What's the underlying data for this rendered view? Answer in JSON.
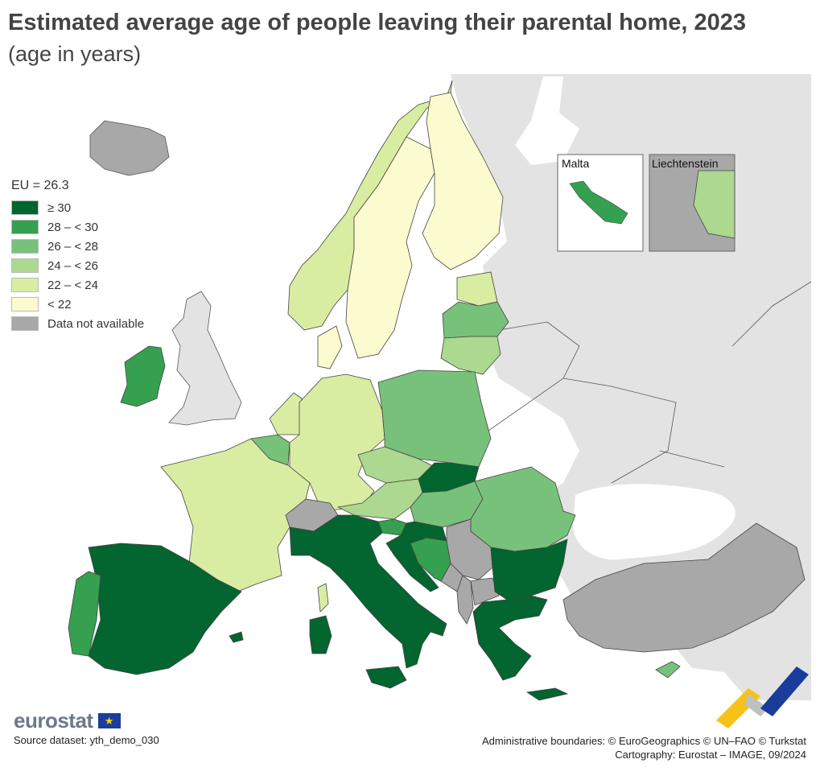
{
  "title": "Estimated average age of people leaving their parental home, 2023",
  "subtitle": "(age in years)",
  "legend": {
    "title": "EU = 26.3",
    "items": [
      {
        "label": "≥ 30",
        "color": "#03652f"
      },
      {
        "label": "28 – < 30",
        "color": "#35a050"
      },
      {
        "label": "26 – < 28",
        "color": "#78c17a"
      },
      {
        "label": "24 – < 26",
        "color": "#acd88f"
      },
      {
        "label": "22 – < 24",
        "color": "#d9eda2"
      },
      {
        "label": "< 22",
        "color": "#fbfbcf"
      },
      {
        "label": "Data not available",
        "color": "#a8a8a8"
      }
    ]
  },
  "colors": {
    "non_eu_land": "#e3e3e3",
    "sea": "#ffffff",
    "no_data": "#a8a8a8",
    "border": "#444444"
  },
  "insets": {
    "malta": {
      "label": "Malta",
      "category": "28 – < 30"
    },
    "liechtenstein": {
      "label": "Liechtenstein",
      "category": "24 – < 26"
    }
  },
  "countries": [
    {
      "name": "Iceland",
      "category": "Data not available"
    },
    {
      "name": "Norway",
      "category": "22 – < 24"
    },
    {
      "name": "Sweden",
      "category": "< 22"
    },
    {
      "name": "Finland",
      "category": "< 22"
    },
    {
      "name": "Estonia",
      "category": "22 – < 24"
    },
    {
      "name": "Latvia",
      "category": "26 – < 28"
    },
    {
      "name": "Lithuania",
      "category": "24 – < 26"
    },
    {
      "name": "Denmark",
      "category": "< 22"
    },
    {
      "name": "Ireland",
      "category": "28 – < 30"
    },
    {
      "name": "United Kingdom",
      "category": "non-EU"
    },
    {
      "name": "Netherlands",
      "category": "22 – < 24"
    },
    {
      "name": "Belgium",
      "category": "26 – < 28"
    },
    {
      "name": "Luxembourg",
      "category": "26 – < 28"
    },
    {
      "name": "Germany",
      "category": "22 – < 24"
    },
    {
      "name": "Poland",
      "category": "26 – < 28"
    },
    {
      "name": "Czechia",
      "category": "24 – < 26"
    },
    {
      "name": "Slovakia",
      "category": "≥ 30"
    },
    {
      "name": "Austria",
      "category": "24 – < 26"
    },
    {
      "name": "Hungary",
      "category": "26 – < 28"
    },
    {
      "name": "Slovenia",
      "category": "28 – < 30"
    },
    {
      "name": "Croatia",
      "category": "≥ 30"
    },
    {
      "name": "Bosnia and Herzegovina",
      "category": "28 – < 30"
    },
    {
      "name": "Serbia",
      "category": "Data not available"
    },
    {
      "name": "Montenegro",
      "category": "Data not available"
    },
    {
      "name": "Albania",
      "category": "Data not available"
    },
    {
      "name": "North Macedonia",
      "category": "Data not available"
    },
    {
      "name": "Romania",
      "category": "26 – < 28"
    },
    {
      "name": "Bulgaria",
      "category": "≥ 30"
    },
    {
      "name": "Greece",
      "category": "≥ 30"
    },
    {
      "name": "Cyprus",
      "category": "26 – < 28"
    },
    {
      "name": "Turkey",
      "category": "Data not available"
    },
    {
      "name": "France",
      "category": "22 – < 24"
    },
    {
      "name": "Switzerland",
      "category": "Data not available"
    },
    {
      "name": "Italy",
      "category": "≥ 30"
    },
    {
      "name": "Spain",
      "category": "≥ 30"
    },
    {
      "name": "Portugal",
      "category": "28 – < 30"
    }
  ],
  "logo": {
    "text": "eurostat",
    "flag_glyph": "★"
  },
  "source": "Source dataset: yth_demo_030",
  "credits": {
    "line1": "Administrative boundaries: © EuroGeographics © UN–FAO © Turkstat",
    "line2": "Cartography: Eurostat – IMAGE, 09/2024"
  }
}
